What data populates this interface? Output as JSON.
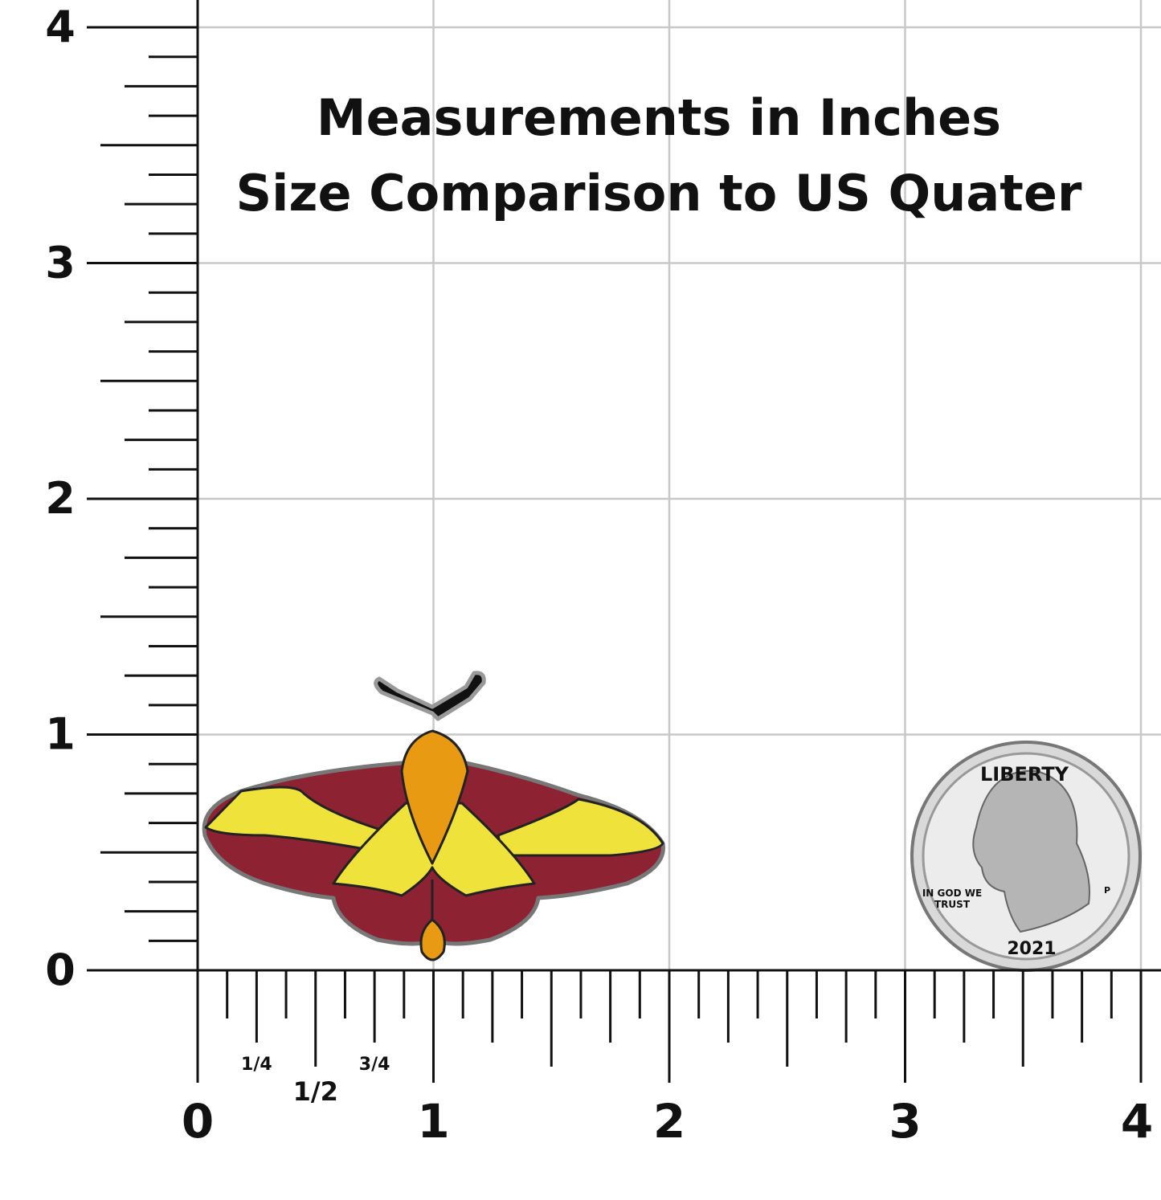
{
  "header": {
    "title_line1": "Measurements in Inches",
    "title_line2": "Size Comparison to US Quater"
  },
  "ruler": {
    "y_labels": [
      "0",
      "1",
      "2",
      "3",
      "4"
    ],
    "x_labels": [
      "0",
      "1",
      "2",
      "3",
      "4"
    ],
    "fractions": [
      "1/4",
      "1/2",
      "3/4"
    ]
  },
  "coin": {
    "top": "LIBERTY",
    "motto_line1": "IN GOD WE",
    "motto_line2": "TRUST",
    "year": "2021",
    "mint": "P"
  }
}
